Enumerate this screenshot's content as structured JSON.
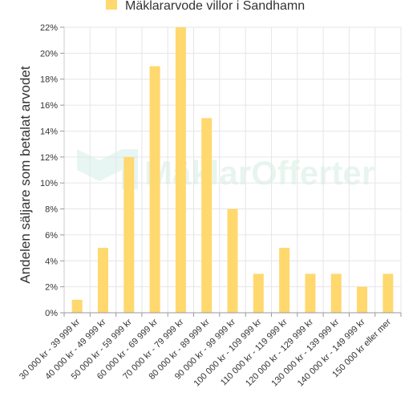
{
  "chart_data": {
    "type": "bar",
    "legend": {
      "label": "Mäklararvode villor i Sandhamn",
      "position": "top-center",
      "color": "#ffd86e"
    },
    "ylabel": "Andelen säljare som betalat arvodet",
    "xlabel": "",
    "ylim": [
      0,
      22
    ],
    "yticks": [
      "0%",
      "2%",
      "4%",
      "6%",
      "8%",
      "10%",
      "12%",
      "14%",
      "16%",
      "18%",
      "20%",
      "22%"
    ],
    "ytick_values": [
      0,
      2,
      4,
      6,
      8,
      10,
      12,
      14,
      16,
      18,
      20,
      22
    ],
    "grid": true,
    "bar_color": "#ffd86e",
    "categories": [
      "30 000 kr - 39 999 kr",
      "40 000 kr - 49 999 kr",
      "50 000 kr - 59 999 kr",
      "60 000 kr - 69 999 kr",
      "70 000 kr - 79 999 kr",
      "80 000 kr - 89 999 kr",
      "90 000 kr - 99 999 kr",
      "100 000 kr - 109 999 kr",
      "110 000 kr - 119 999 kr",
      "120 000 kr - 129 999 kr",
      "130 000 kr - 139 999 kr",
      "140 000 kr - 149 999 kr",
      "150 000 kr eller mer"
    ],
    "values": [
      1,
      5,
      12,
      19,
      22,
      15,
      8,
      3,
      5,
      3,
      3,
      2,
      3
    ]
  },
  "watermark": {
    "text": "MäklarOfferter"
  }
}
